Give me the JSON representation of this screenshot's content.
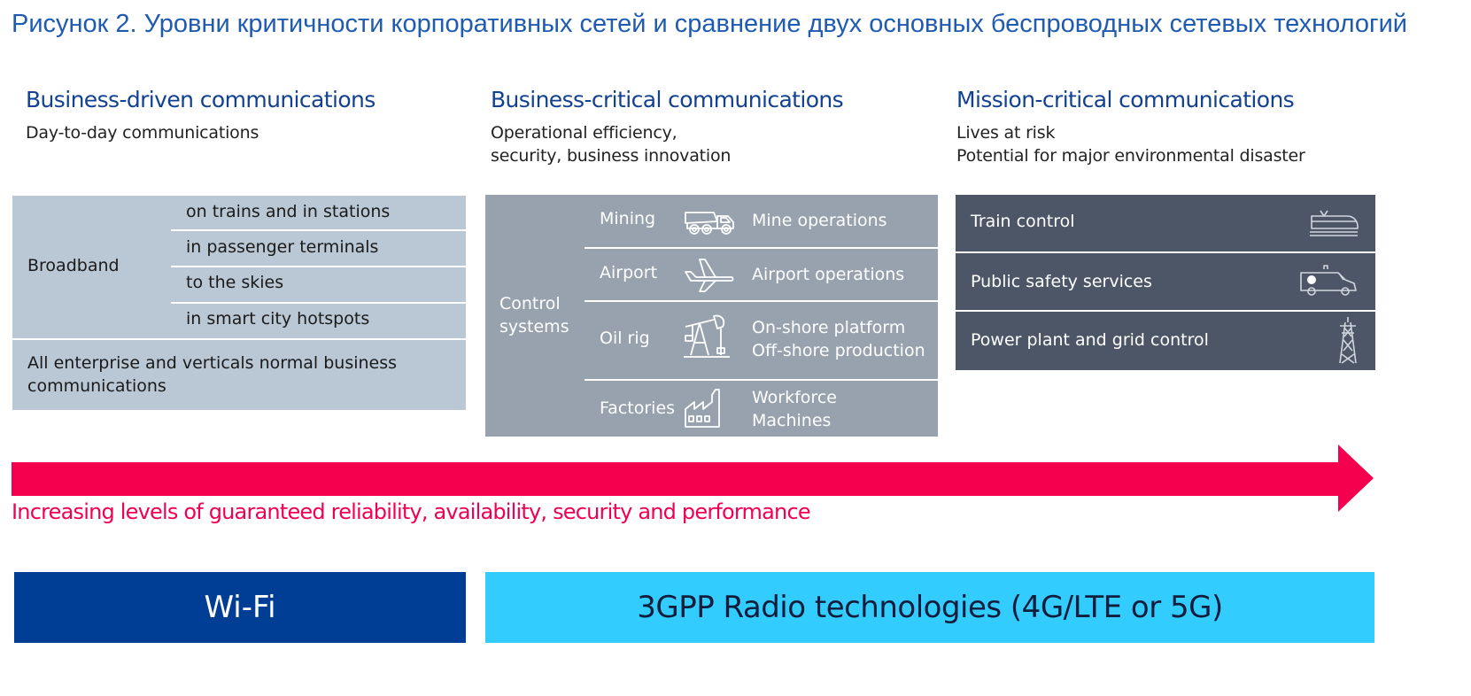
{
  "figure_title": "Рисунок 2. Уровни критичности корпоративных сетей и сравнение двух основных беспроводных сетевых технологий",
  "columns": [
    {
      "heading": "Business-driven communications",
      "subheading_lines": [
        "Day-to-day communications"
      ],
      "color": "#bac8d6"
    },
    {
      "heading": "Business-critical communications",
      "subheading_lines": [
        "Operational efficiency,",
        "security, business innovation"
      ],
      "color": "#97a2ae"
    },
    {
      "heading": "Mission-critical communications",
      "subheading_lines": [
        "Lives at risk",
        "Potential for major environmental disaster"
      ],
      "color": "#4c5666"
    }
  ],
  "business_driven": {
    "group_label": "Broadband",
    "items": [
      "on trains and in stations",
      "in passenger terminals",
      "to the skies",
      "in smart city hotspots"
    ],
    "footer_lines": [
      "All enterprise and verticals normal business",
      "communications"
    ]
  },
  "business_critical": {
    "group_label_lines": [
      "Control",
      "systems"
    ],
    "rows": [
      {
        "sector": "Mining",
        "icon": "mining-truck-icon",
        "uses": [
          "Mine operations"
        ]
      },
      {
        "sector": "Airport",
        "icon": "airplane-icon",
        "uses": [
          "Airport operations"
        ]
      },
      {
        "sector": "Oil rig",
        "icon": "oil-pump-icon",
        "uses": [
          "On-shore platform",
          "Off-shore production"
        ]
      },
      {
        "sector": "Factories",
        "icon": "factory-icon",
        "uses": [
          "Workforce",
          "Machines"
        ]
      }
    ]
  },
  "mission_critical": {
    "rows": [
      {
        "label": "Train control",
        "icon": "train-icon"
      },
      {
        "label": "Public safety services",
        "icon": "ambulance-icon"
      },
      {
        "label": "Power plant and grid control",
        "icon": "power-pylon-icon"
      }
    ]
  },
  "arrow": {
    "label": "Increasing levels of guaranteed reliability, availability, security and performance",
    "color": "#f5004e"
  },
  "technologies": {
    "wifi": {
      "label": "Wi-Fi",
      "color": "#003e96"
    },
    "cellular": {
      "label": "3GPP Radio technologies (4G/LTE or 5G)",
      "color": "#33ccff"
    }
  }
}
